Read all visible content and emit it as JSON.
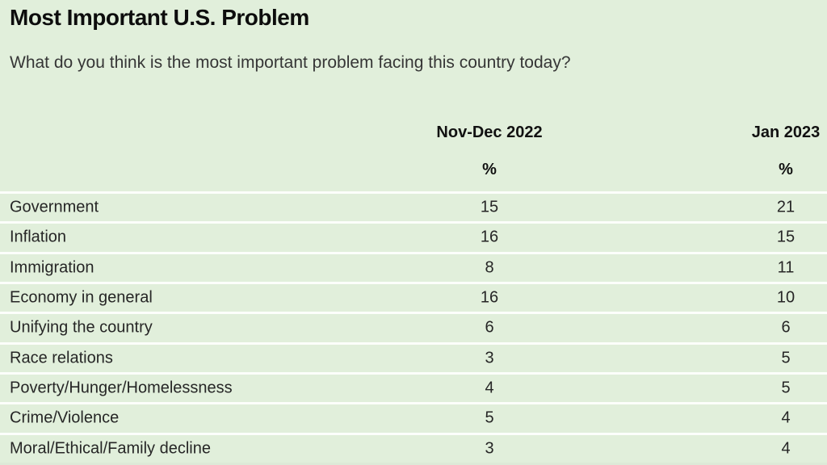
{
  "header": {
    "title": "Most Important U.S. Problem",
    "question": "What do you think is the most important problem facing this country today?"
  },
  "table": {
    "columns": [
      {
        "label": "Nov-Dec 2022",
        "unit": "%"
      },
      {
        "label": "Jan 2023",
        "unit": "%"
      }
    ],
    "rows": [
      {
        "label": "Government",
        "values": [
          "15",
          "21"
        ]
      },
      {
        "label": "Inflation",
        "values": [
          "16",
          "15"
        ]
      },
      {
        "label": "Immigration",
        "values": [
          "8",
          "11"
        ]
      },
      {
        "label": "Economy in general",
        "values": [
          "16",
          "10"
        ]
      },
      {
        "label": "Unifying the country",
        "values": [
          "6",
          "6"
        ]
      },
      {
        "label": "Race relations",
        "values": [
          "3",
          "5"
        ]
      },
      {
        "label": "Poverty/Hunger/Homelessness",
        "values": [
          "4",
          "5"
        ]
      },
      {
        "label": "Crime/Violence",
        "values": [
          "5",
          "4"
        ]
      },
      {
        "label": "Moral/Ethical/Family decline",
        "values": [
          "3",
          "4"
        ]
      }
    ]
  },
  "colors": {
    "background": "#e1efdb",
    "divider": "#fcfefb",
    "title_text": "#0d0d0d",
    "body_text": "#262626"
  },
  "chart_data": {
    "type": "table",
    "title": "Most Important U.S. Problem",
    "subtitle": "What do you think is the most important problem facing this country today?",
    "unit": "%",
    "categories": [
      "Government",
      "Inflation",
      "Immigration",
      "Economy in general",
      "Unifying the country",
      "Race relations",
      "Poverty/Hunger/Homelessness",
      "Crime/Violence",
      "Moral/Ethical/Family decline"
    ],
    "series": [
      {
        "name": "Nov-Dec 2022",
        "values": [
          15,
          16,
          8,
          16,
          6,
          3,
          4,
          5,
          3
        ]
      },
      {
        "name": "Jan 2023",
        "values": [
          21,
          15,
          11,
          10,
          6,
          5,
          5,
          4,
          4
        ]
      }
    ]
  }
}
